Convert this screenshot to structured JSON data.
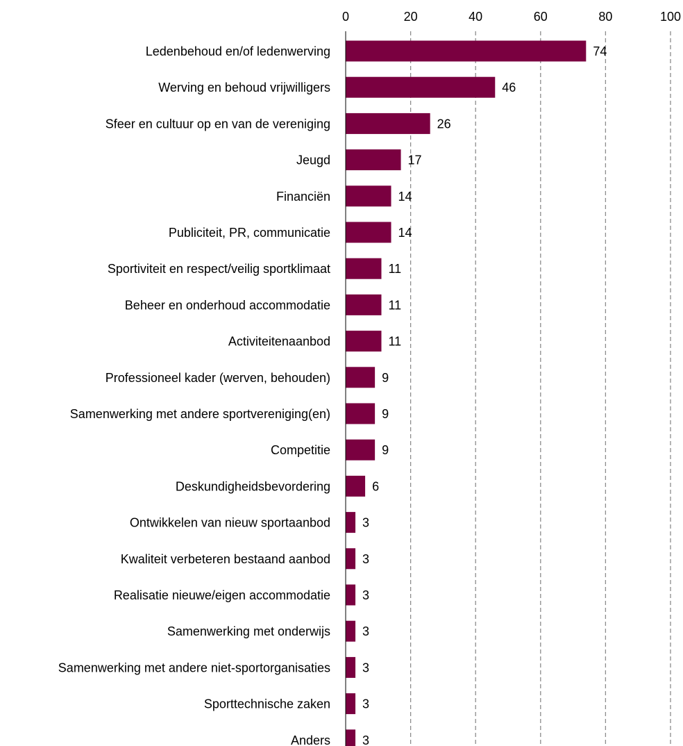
{
  "chart_data": {
    "type": "bar",
    "orientation": "horizontal",
    "title": "",
    "xlabel": "",
    "ylabel": "",
    "xlim": [
      0,
      100
    ],
    "xticks": [
      0,
      20,
      40,
      60,
      80,
      100
    ],
    "x_axis_position": "top",
    "grid": "vertical dashed",
    "bar_color": "#7a0040",
    "categories": [
      "Ledenbehoud en/of ledenwerving",
      "Werving en behoud vrijwilligers",
      "Sfeer en cultuur op en van de vereniging",
      "Jeugd",
      "Financiën",
      "Publiciteit, PR, communicatie",
      "Sportiviteit en respect/veilig sportklimaat",
      "Beheer en onderhoud accommodatie",
      "Activiteitenaanbod",
      "Professioneel kader (werven, behouden)",
      "Samenwerking met andere sportvereniging(en)",
      "Competitie",
      "Deskundigheidsbevordering",
      "Ontwikkelen van nieuw sportaanbod",
      "Kwaliteit verbeteren bestaand aanbod",
      "Realisatie nieuwe/eigen accommodatie",
      "Samenwerking met onderwijs",
      "Samenwerking met andere niet-sportorganisaties",
      "Sporttechnische zaken",
      "Anders"
    ],
    "values": [
      74,
      46,
      26,
      17,
      14,
      14,
      11,
      11,
      11,
      9,
      9,
      9,
      6,
      3,
      3,
      3,
      3,
      3,
      3,
      3
    ]
  }
}
